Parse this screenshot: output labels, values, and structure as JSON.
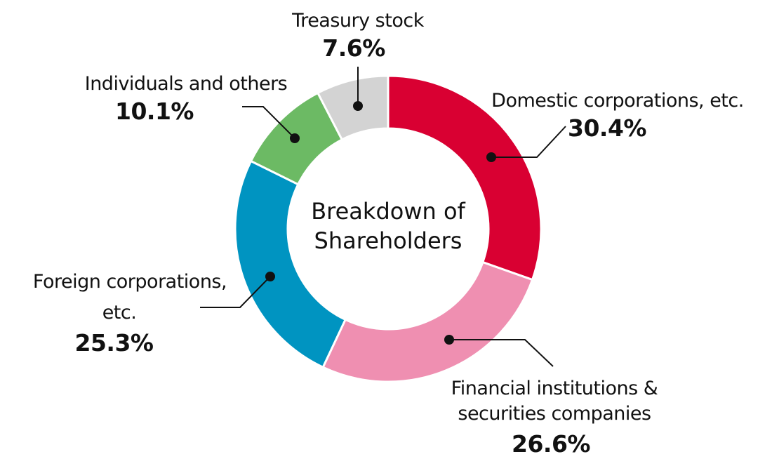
{
  "chart_data": {
    "type": "pie",
    "variant": "donut",
    "title": "Breakdown of Shareholders",
    "start_angle": "12 o'clock",
    "direction": "clockwise",
    "slices": [
      {
        "label": "Domestic corporations, etc.",
        "value": 30.4,
        "value_label": "30.4%",
        "color": "#d90032"
      },
      {
        "label": "Financial institutions & securities companies",
        "label_lines": [
          "Financial institutions &",
          "securities companies"
        ],
        "value": 26.6,
        "value_label": "26.6%",
        "color": "#ef8fb1"
      },
      {
        "label": "Foreign corporations, etc.",
        "label_lines": [
          "Foreign corporations,",
          "etc."
        ],
        "value": 25.3,
        "value_label": "25.3%",
        "color": "#0094c1"
      },
      {
        "label": "Individuals and others",
        "value": 10.1,
        "value_label": "10.1%",
        "color": "#6cba64"
      },
      {
        "label": "Treasury stock",
        "value": 7.6,
        "value_label": "7.6%",
        "color": "#d3d3d3"
      }
    ]
  }
}
